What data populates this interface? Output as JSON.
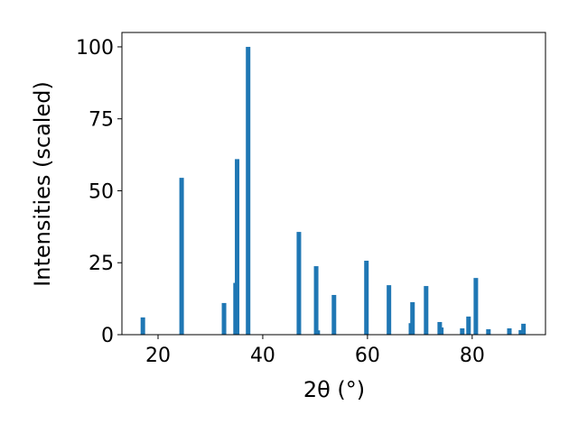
{
  "chart_data": {
    "type": "bar",
    "x_label": "2θ (°)",
    "y_label": "Intensities (scaled)",
    "x": [
      17.1,
      24.5,
      32.6,
      34.8,
      35.1,
      37.2,
      46.9,
      50.2,
      50.5,
      53.6,
      59.8,
      64.1,
      68.3,
      68.6,
      71.2,
      73.8,
      74.1,
      78.1,
      79.3,
      80.7,
      83.1,
      87.1,
      89.3,
      89.8
    ],
    "values": [
      6,
      54.5,
      11,
      18,
      61,
      100,
      35.7,
      23.8,
      1.5,
      13.8,
      25.7,
      17.2,
      4,
      11.3,
      16.9,
      4.4,
      2.5,
      2.2,
      6.3,
      19.7,
      1.9,
      2.2,
      1.6,
      3.8
    ],
    "color": "#1f77b4",
    "xlim": [
      13.1,
      94
    ],
    "ylim": [
      0,
      105
    ],
    "xticks": [
      20,
      40,
      60,
      80
    ],
    "yticks": [
      0,
      25,
      50,
      75,
      100
    ]
  }
}
